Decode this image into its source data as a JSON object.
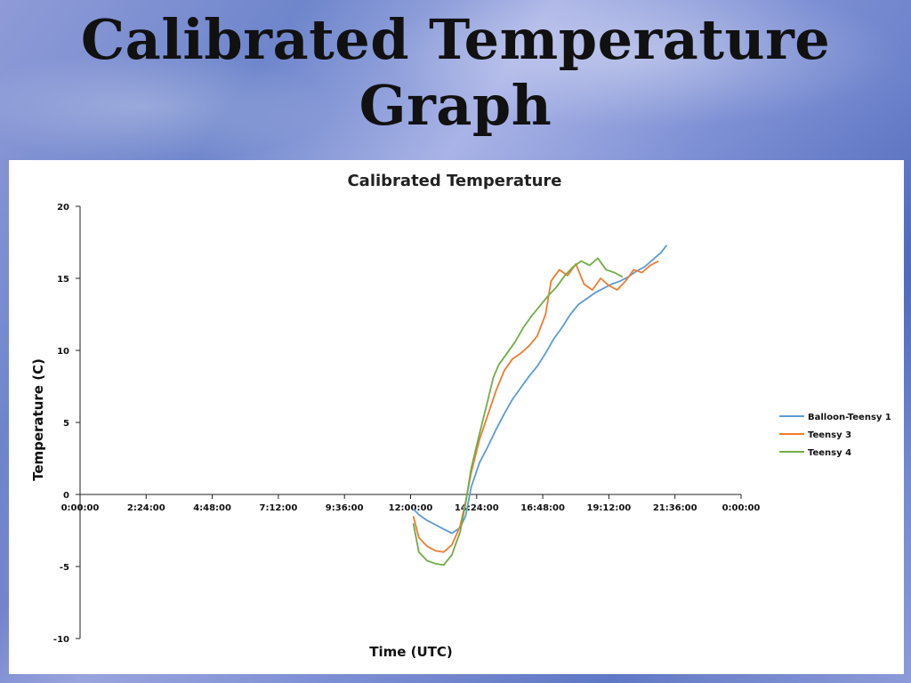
{
  "slide": {
    "title_line1": "Calibrated Temperature",
    "title_line2": "Graph"
  },
  "chart_data": {
    "type": "line",
    "title": "Calibrated Temperature",
    "xlabel": "Time (UTC)",
    "ylabel": "Temperature (C)",
    "x_unit": "hours UTC (0 = 0:00:00)",
    "xlim": [
      0,
      24
    ],
    "ylim": [
      -10,
      20
    ],
    "x_ticks": [
      {
        "value": 0,
        "label": "0:00:00"
      },
      {
        "value": 2.4,
        "label": "2:24:00"
      },
      {
        "value": 4.8,
        "label": "4:48:00"
      },
      {
        "value": 7.2,
        "label": "7:12:00"
      },
      {
        "value": 9.6,
        "label": "9:36:00"
      },
      {
        "value": 12.0,
        "label": "12:00:00"
      },
      {
        "value": 14.4,
        "label": "14:24:00"
      },
      {
        "value": 16.8,
        "label": "16:48:00"
      },
      {
        "value": 19.2,
        "label": "19:12:00"
      },
      {
        "value": 21.6,
        "label": "21:36:00"
      },
      {
        "value": 24.0,
        "label": "0:00:00"
      }
    ],
    "y_ticks": [
      {
        "value": -10,
        "label": "-10"
      },
      {
        "value": -5,
        "label": "-5"
      },
      {
        "value": 0,
        "label": "0"
      },
      {
        "value": 5,
        "label": "5"
      },
      {
        "value": 10,
        "label": "10"
      },
      {
        "value": 15,
        "label": "15"
      },
      {
        "value": 20,
        "label": "20"
      }
    ],
    "grid": false,
    "legend_position": "right",
    "series": [
      {
        "name": "Balloon-Teensy 1",
        "color": "#5b9bd5",
        "x": [
          12.1,
          12.3,
          12.6,
          12.9,
          13.2,
          13.5,
          13.8,
          14.0,
          14.2,
          14.5,
          14.8,
          15.1,
          15.4,
          15.7,
          16.0,
          16.3,
          16.6,
          16.9,
          17.2,
          17.5,
          17.8,
          18.1,
          18.4,
          18.7,
          19.0,
          19.3,
          19.6,
          19.9,
          20.2,
          20.5,
          20.8,
          21.1,
          21.3
        ],
        "y": [
          -1.0,
          -1.4,
          -1.8,
          -2.1,
          -2.4,
          -2.7,
          -2.3,
          -1.5,
          0.5,
          2.2,
          3.3,
          4.5,
          5.6,
          6.6,
          7.4,
          8.2,
          8.9,
          9.8,
          10.8,
          11.6,
          12.5,
          13.2,
          13.6,
          14.0,
          14.3,
          14.6,
          14.8,
          15.1,
          15.5,
          15.8,
          16.3,
          16.8,
          17.3
        ]
      },
      {
        "name": "Teensy 3",
        "color": "#ed7d31",
        "x": [
          12.1,
          12.3,
          12.6,
          12.9,
          13.2,
          13.5,
          13.8,
          14.0,
          14.2,
          14.5,
          14.8,
          15.1,
          15.4,
          15.7,
          16.0,
          16.3,
          16.6,
          16.9,
          17.1,
          17.4,
          17.7,
          18.0,
          18.3,
          18.6,
          18.9,
          19.2,
          19.5,
          19.8,
          20.1,
          20.4,
          20.7,
          21.0
        ],
        "y": [
          -1.5,
          -3.0,
          -3.6,
          -3.9,
          -4.0,
          -3.5,
          -2.2,
          -0.5,
          1.5,
          3.8,
          5.5,
          7.2,
          8.6,
          9.4,
          9.8,
          10.3,
          11.0,
          12.5,
          14.8,
          15.6,
          15.2,
          16.0,
          14.6,
          14.2,
          15.0,
          14.5,
          14.2,
          14.8,
          15.6,
          15.4,
          15.9,
          16.2
        ]
      },
      {
        "name": "Teensy 4",
        "color": "#70ad47",
        "x": [
          12.1,
          12.3,
          12.6,
          12.9,
          13.2,
          13.5,
          13.8,
          14.0,
          14.2,
          14.5,
          14.8,
          15.0,
          15.2,
          15.5,
          15.8,
          16.1,
          16.4,
          16.7,
          17.0,
          17.3,
          17.6,
          17.9,
          18.2,
          18.5,
          18.8,
          19.1,
          19.4,
          19.7
        ],
        "y": [
          -2.0,
          -4.0,
          -4.6,
          -4.8,
          -4.9,
          -4.2,
          -2.6,
          -0.6,
          1.8,
          4.2,
          6.5,
          8.1,
          9.0,
          9.8,
          10.6,
          11.6,
          12.4,
          13.1,
          13.8,
          14.4,
          15.2,
          15.8,
          16.2,
          15.9,
          16.4,
          15.6,
          15.4,
          15.1
        ]
      }
    ]
  }
}
